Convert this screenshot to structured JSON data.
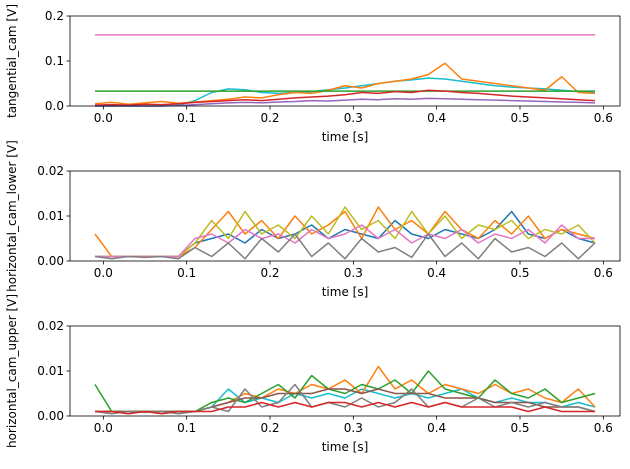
{
  "chart_data": [
    {
      "type": "line",
      "xlabel": "time [s]",
      "ylabel": "tangential_cam [V]",
      "xlim": [
        -0.04,
        0.62
      ],
      "ylim": [
        0,
        0.2
      ],
      "xticks": [
        {
          "value": 0,
          "label": "0.0"
        },
        0.1,
        0.2,
        0.3,
        0.4,
        0.5,
        0.6
      ],
      "yticks": [
        {
          "value": 0,
          "label": "0.0"
        },
        0.1,
        0.2
      ],
      "x": [
        -0.01,
        0.01,
        0.03,
        0.05,
        0.07,
        0.09,
        0.11,
        0.13,
        0.15,
        0.17,
        0.19,
        0.21,
        0.23,
        0.25,
        0.27,
        0.29,
        0.31,
        0.33,
        0.35,
        0.37,
        0.39,
        0.41,
        0.43,
        0.45,
        0.47,
        0.49,
        0.51,
        0.53,
        0.55,
        0.57,
        0.59
      ],
      "series": [
        {
          "color": "#e377c2",
          "values": [
            0.158,
            0.158,
            0.158,
            0.158,
            0.158,
            0.158,
            0.158,
            0.158,
            0.158,
            0.158,
            0.158,
            0.158,
            0.158,
            0.158,
            0.158,
            0.158,
            0.158,
            0.158,
            0.158,
            0.158,
            0.158,
            0.158,
            0.158,
            0.158,
            0.158,
            0.158,
            0.158,
            0.158,
            0.158,
            0.158,
            0.158
          ]
        },
        {
          "color": "#17becf",
          "values": [
            0,
            0,
            0,
            0,
            0,
            0.002,
            0.012,
            0.03,
            0.038,
            0.036,
            0.03,
            0.028,
            0.03,
            0.032,
            0.036,
            0.04,
            0.045,
            0.05,
            0.055,
            0.058,
            0.062,
            0.06,
            0.055,
            0.05,
            0.045,
            0.042,
            0.04,
            0.038,
            0.035,
            0.032,
            0.03
          ]
        },
        {
          "color": "#ff7f0e",
          "values": [
            0.005,
            0.008,
            0.004,
            0.007,
            0.01,
            0.006,
            0.009,
            0.012,
            0.015,
            0.02,
            0.018,
            0.025,
            0.03,
            0.028,
            0.035,
            0.045,
            0.04,
            0.05,
            0.055,
            0.06,
            0.07,
            0.095,
            0.06,
            0.055,
            0.05,
            0.045,
            0.04,
            0.035,
            0.065,
            0.03,
            0.028
          ]
        },
        {
          "color": "#2ca02c",
          "values": [
            0.033,
            0.033,
            0.033,
            0.033,
            0.033,
            0.033,
            0.033,
            0.033,
            0.033,
            0.033,
            0.033,
            0.033,
            0.033,
            0.033,
            0.033,
            0.033,
            0.033,
            0.033,
            0.033,
            0.033,
            0.033,
            0.033,
            0.033,
            0.033,
            0.033,
            0.033,
            0.033,
            0.033,
            0.033,
            0.033,
            0.033
          ]
        },
        {
          "color": "#d62728",
          "values": [
            0.002,
            0.003,
            0.002,
            0.004,
            0.003,
            0.005,
            0.008,
            0.01,
            0.012,
            0.014,
            0.012,
            0.015,
            0.018,
            0.02,
            0.022,
            0.025,
            0.03,
            0.028,
            0.032,
            0.03,
            0.035,
            0.033,
            0.03,
            0.028,
            0.025,
            0.022,
            0.02,
            0.018,
            0.016,
            0.014,
            0.012
          ]
        },
        {
          "color": "#9467bd",
          "values": [
            0,
            0,
            0,
            0,
            0,
            0.001,
            0.003,
            0.005,
            0.007,
            0.008,
            0.007,
            0.009,
            0.01,
            0.012,
            0.011,
            0.013,
            0.015,
            0.014,
            0.016,
            0.015,
            0.017,
            0.016,
            0.015,
            0.014,
            0.013,
            0.012,
            0.011,
            0.01,
            0.009,
            0.008,
            0.007
          ]
        }
      ]
    },
    {
      "type": "line",
      "xlabel": "time [s]",
      "ylabel": "horizontal_cam_lower [V]",
      "xlim": [
        -0.04,
        0.62
      ],
      "ylim": [
        0,
        0.02
      ],
      "xticks": [
        {
          "value": 0,
          "label": "0.0"
        },
        0.1,
        0.2,
        0.3,
        0.4,
        0.5,
        0.6
      ],
      "yticks": [
        {
          "value": 0,
          "label": "0.00"
        },
        0.01,
        0.02
      ],
      "x": [
        -0.01,
        0.01,
        0.03,
        0.05,
        0.07,
        0.09,
        0.11,
        0.13,
        0.15,
        0.17,
        0.19,
        0.21,
        0.23,
        0.25,
        0.27,
        0.29,
        0.31,
        0.33,
        0.35,
        0.37,
        0.39,
        0.41,
        0.43,
        0.45,
        0.47,
        0.49,
        0.51,
        0.53,
        0.55,
        0.57,
        0.59
      ],
      "series": [
        {
          "color": "#1f77b4",
          "values": [
            0.001,
            0.001,
            0.001,
            0.001,
            0.001,
            0.001,
            0.004,
            0.005,
            0.006,
            0.004,
            0.007,
            0.005,
            0.006,
            0.008,
            0.005,
            0.007,
            0.006,
            0.005,
            0.009,
            0.006,
            0.005,
            0.007,
            0.006,
            0.005,
            0.007,
            0.011,
            0.006,
            0.005,
            0.007,
            0.005,
            0.004
          ]
        },
        {
          "color": "#ff7f0e",
          "values": [
            0.006,
            0.001,
            0.001,
            0.001,
            0.001,
            0.001,
            0.003,
            0.007,
            0.011,
            0.006,
            0.009,
            0.005,
            0.01,
            0.006,
            0.008,
            0.011,
            0.005,
            0.012,
            0.007,
            0.009,
            0.006,
            0.011,
            0.007,
            0.005,
            0.009,
            0.006,
            0.01,
            0.005,
            0.007,
            0.006,
            0.005
          ]
        },
        {
          "color": "#bcbd22",
          "values": [
            0.001,
            0.001,
            0.001,
            0.001,
            0.001,
            0.001,
            0.004,
            0.009,
            0.005,
            0.011,
            0.006,
            0.008,
            0.005,
            0.01,
            0.006,
            0.012,
            0.007,
            0.009,
            0.005,
            0.011,
            0.006,
            0.01,
            0.005,
            0.008,
            0.007,
            0.009,
            0.005,
            0.007,
            0.006,
            0.008,
            0.004
          ]
        },
        {
          "color": "#e377c2",
          "values": [
            0.001,
            0.001,
            0.001,
            0.001,
            0.001,
            0.001,
            0.005,
            0.006,
            0.004,
            0.007,
            0.005,
            0.006,
            0.004,
            0.007,
            0.005,
            0.006,
            0.008,
            0.005,
            0.007,
            0.004,
            0.006,
            0.005,
            0.007,
            0.004,
            0.006,
            0.005,
            0.007,
            0.004,
            0.008,
            0.005,
            0.005
          ]
        },
        {
          "color": "#7f7f7f",
          "values": [
            0.001,
            0.0005,
            0.001,
            0.0008,
            0.001,
            0.0005,
            0.003,
            0.001,
            0.004,
            0.0005,
            0.005,
            0.002,
            0.006,
            0.001,
            0.004,
            0.0005,
            0.005,
            0.002,
            0.003,
            0.0008,
            0.006,
            0.001,
            0.004,
            0.0005,
            0.005,
            0.002,
            0.003,
            0.001,
            0.004,
            0.0005,
            0.004
          ]
        }
      ]
    },
    {
      "type": "line",
      "xlabel": "time [s]",
      "ylabel": "horizontal_cam_upper [V]",
      "xlim": [
        -0.04,
        0.62
      ],
      "ylim": [
        0,
        0.02
      ],
      "xticks": [
        {
          "value": 0,
          "label": "0.0"
        },
        0.1,
        0.2,
        0.3,
        0.4,
        0.5,
        0.6
      ],
      "yticks": [
        {
          "value": 0,
          "label": "0.00"
        },
        0.01,
        0.02
      ],
      "x": [
        -0.01,
        0.01,
        0.03,
        0.05,
        0.07,
        0.09,
        0.11,
        0.13,
        0.15,
        0.17,
        0.19,
        0.21,
        0.23,
        0.25,
        0.27,
        0.29,
        0.31,
        0.33,
        0.35,
        0.37,
        0.39,
        0.41,
        0.43,
        0.45,
        0.47,
        0.49,
        0.51,
        0.53,
        0.55,
        0.57,
        0.59
      ],
      "series": [
        {
          "color": "#17becf",
          "values": [
            0.001,
            0.001,
            0.001,
            0.001,
            0.001,
            0.001,
            0.001,
            0.002,
            0.006,
            0.003,
            0.004,
            0.003,
            0.005,
            0.004,
            0.005,
            0.004,
            0.006,
            0.005,
            0.004,
            0.005,
            0.004,
            0.005,
            0.006,
            0.004,
            0.003,
            0.004,
            0.003,
            0.003,
            0.002,
            0.003,
            0.002
          ]
        },
        {
          "color": "#ff7f0e",
          "values": [
            0.001,
            0.001,
            0.001,
            0.001,
            0.001,
            0.001,
            0.001,
            0.002,
            0.003,
            0.005,
            0.004,
            0.006,
            0.005,
            0.007,
            0.006,
            0.008,
            0.005,
            0.011,
            0.006,
            0.008,
            0.005,
            0.007,
            0.006,
            0.005,
            0.007,
            0.005,
            0.006,
            0.004,
            0.003,
            0.006,
            0.002
          ]
        },
        {
          "color": "#2ca02c",
          "values": [
            0.007,
            0.001,
            0.001,
            0.001,
            0.001,
            0.001,
            0.001,
            0.003,
            0.004,
            0.003,
            0.005,
            0.007,
            0.004,
            0.009,
            0.006,
            0.005,
            0.007,
            0.006,
            0.008,
            0.005,
            0.01,
            0.006,
            0.005,
            0.004,
            0.008,
            0.005,
            0.004,
            0.006,
            0.003,
            0.004,
            0.005
          ]
        },
        {
          "color": "#8c564b",
          "values": [
            0.001,
            0.001,
            0.001,
            0.001,
            0.001,
            0.001,
            0.001,
            0.002,
            0.003,
            0.004,
            0.004,
            0.005,
            0.005,
            0.005,
            0.006,
            0.006,
            0.005,
            0.006,
            0.005,
            0.005,
            0.005,
            0.004,
            0.004,
            0.004,
            0.003,
            0.003,
            0.003,
            0.002,
            0.002,
            0.002,
            0.001
          ]
        },
        {
          "color": "#7f7f7f",
          "values": [
            0.001,
            0.0005,
            0.001,
            0.0008,
            0.001,
            0.0005,
            0.001,
            0.002,
            0.001,
            0.006,
            0.002,
            0.003,
            0.007,
            0.002,
            0.003,
            0.002,
            0.004,
            0.002,
            0.003,
            0.006,
            0.002,
            0.003,
            0.002,
            0.004,
            0.002,
            0.003,
            0.002,
            0.003,
            0.002,
            0.002,
            0.001
          ]
        },
        {
          "color": "#d62728",
          "values": [
            0.001,
            0.001,
            0.0005,
            0.001,
            0.0005,
            0.001,
            0.001,
            0.001,
            0.002,
            0.002,
            0.003,
            0.002,
            0.003,
            0.002,
            0.003,
            0.003,
            0.002,
            0.003,
            0.002,
            0.003,
            0.002,
            0.003,
            0.002,
            0.002,
            0.002,
            0.002,
            0.001,
            0.002,
            0.001,
            0.001,
            0.001
          ]
        }
      ]
    }
  ]
}
